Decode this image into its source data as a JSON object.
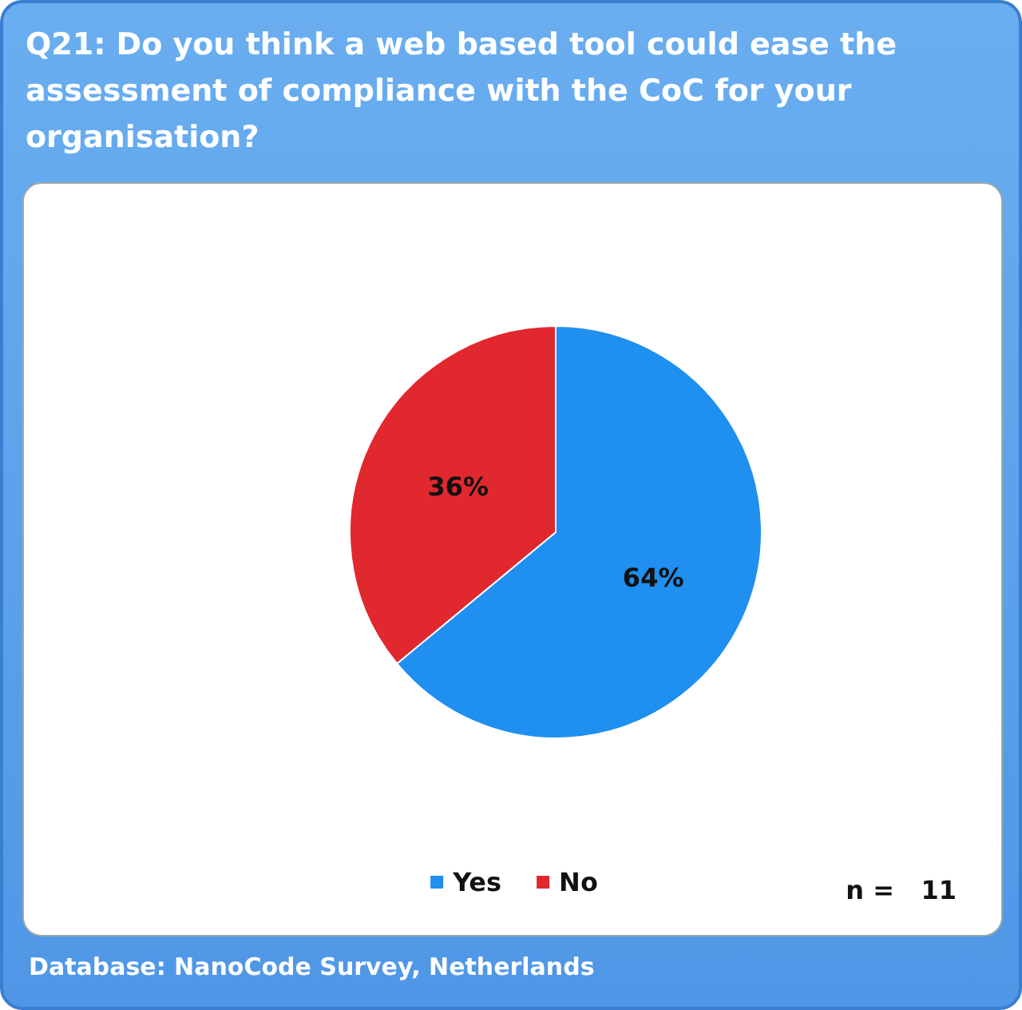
{
  "chart_data": {
    "type": "pie",
    "title": "Q21: Do you think a web based tool could ease the assessment of compliance with the CoC for your organisation?",
    "categories": [
      "Yes",
      "No"
    ],
    "values": [
      64,
      36
    ],
    "colors": [
      "#1f8ff0",
      "#e0282e"
    ],
    "value_labels": [
      "64%",
      "36%"
    ],
    "legend": "bottom",
    "annotations": [
      "n =   11",
      "Database: NanoCode Survey,  Netherlands"
    ]
  }
}
